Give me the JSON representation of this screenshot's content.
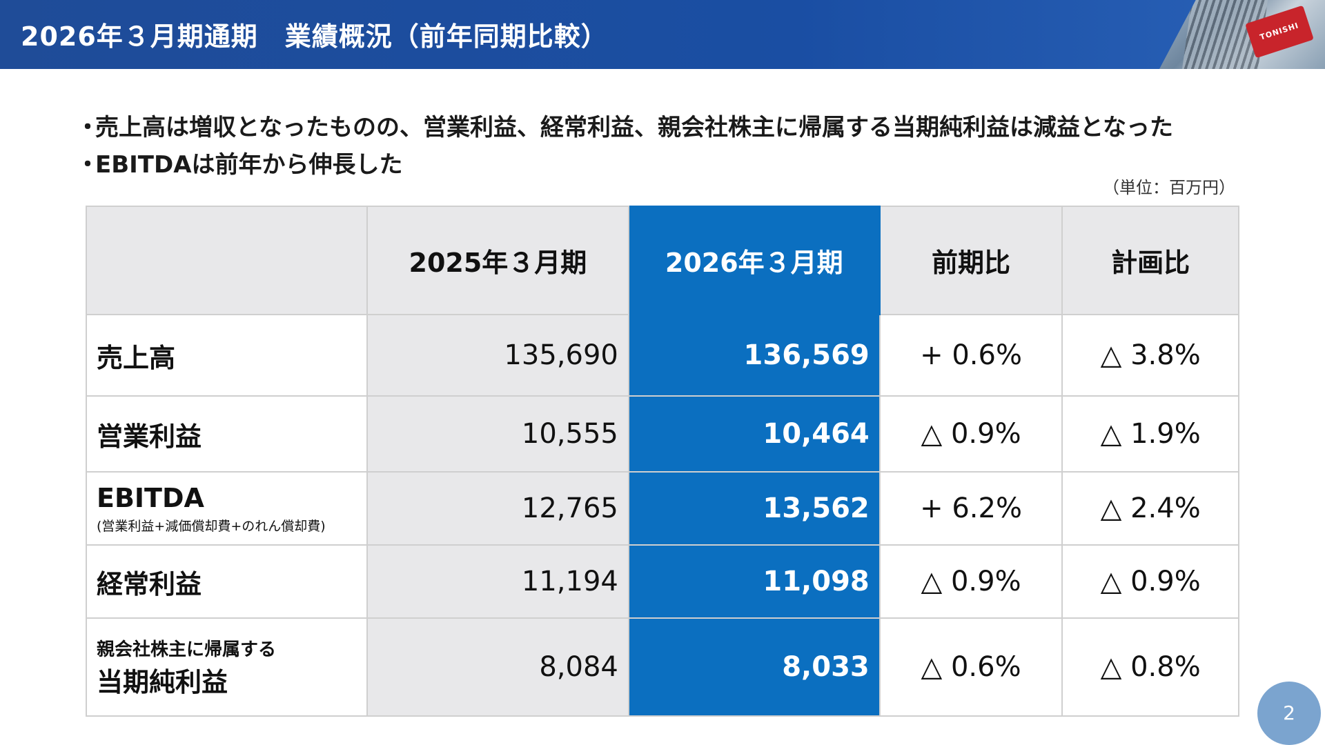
{
  "header": {
    "title": "2026年３月期通期　業績概況（前年同期比較）",
    "sign_text": "TONISHI"
  },
  "bullets": [
    "売上高は増収となったものの、営業利益、経常利益、親会社株主に帰属する当期純利益は減益となった",
    "EBITDAは前年から伸長した"
  ],
  "bullet_marker": "・",
  "unit_note": "（単位：百万円）",
  "table": {
    "columns": [
      "",
      "2025年３月期",
      "2026年３月期",
      "前期比",
      "計画比"
    ],
    "rows": [
      {
        "label": "売上高",
        "sub": "",
        "prev": "135,690",
        "cur": "136,569",
        "yoy": "+ 0.6%",
        "plan": "△ 3.8%"
      },
      {
        "label": "営業利益",
        "sub": "",
        "prev": "10,555",
        "cur": "10,464",
        "yoy": "△ 0.9%",
        "plan": "△ 1.9%"
      },
      {
        "label": "EBITDA",
        "sub": "(営業利益+減価償却費+のれん償却費)",
        "prev": "12,765",
        "cur": "13,562",
        "yoy": "+ 6.2%",
        "plan": "△ 2.4%"
      },
      {
        "label": "経常利益",
        "sub": "",
        "prev": "11,194",
        "cur": "11,098",
        "yoy": "△ 0.9%",
        "plan": "△ 0.9%"
      },
      {
        "label": "当期純利益",
        "pre": "親会社株主に帰属する",
        "prev": "8,084",
        "cur": "8,033",
        "yoy": "△ 0.6%",
        "plan": "△ 0.8%"
      }
    ]
  },
  "page_number": "2",
  "colors": {
    "header_bg": "#1f4c98",
    "highlight_col": "#0b6fc0",
    "gray_cell": "#e8e8ea",
    "page_badge": "#7ba4cf"
  }
}
